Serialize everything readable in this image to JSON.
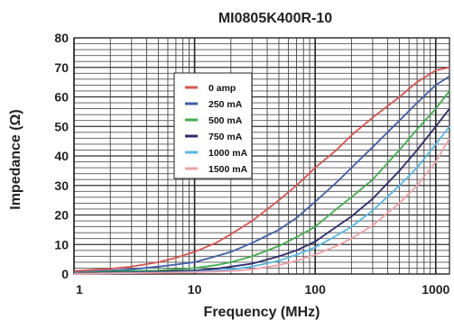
{
  "chart_data": {
    "type": "line",
    "title": "MI0805K400R-10",
    "xlabel": "Frequency (MHz)",
    "ylabel": "Impedance (Ω)",
    "x_scale": "log",
    "xlim": [
      1,
      1300
    ],
    "ylim": [
      0,
      80
    ],
    "grid": true,
    "legend_position": "top-center",
    "x_ticks": [
      {
        "value": 1,
        "label": "1"
      },
      {
        "value": 10,
        "label": "10"
      },
      {
        "value": 100,
        "label": "100"
      },
      {
        "value": 1000,
        "label": "1000"
      }
    ],
    "y_ticks": [
      {
        "value": 0,
        "label": "0"
      },
      {
        "value": 10,
        "label": "10"
      },
      {
        "value": 20,
        "label": "20"
      },
      {
        "value": 30,
        "label": "30"
      },
      {
        "value": 40,
        "label": "40"
      },
      {
        "value": 50,
        "label": "50"
      },
      {
        "value": 60,
        "label": "60"
      },
      {
        "value": 70,
        "label": "70"
      },
      {
        "value": 80,
        "label": "80"
      }
    ],
    "series": [
      {
        "name": "0 amp",
        "color": "#d9534f",
        "x": [
          1,
          2,
          3,
          5,
          7,
          10,
          15,
          20,
          30,
          50,
          70,
          100,
          150,
          200,
          300,
          500,
          700,
          1000,
          1300
        ],
        "y": [
          1,
          1.8,
          2.5,
          4,
          5.5,
          7.5,
          10.5,
          13.5,
          18,
          25,
          30,
          36,
          42,
          47,
          53,
          60,
          65,
          69,
          70
        ]
      },
      {
        "name": "250 mA",
        "color": "#3f5fa8",
        "x": [
          1,
          2,
          3,
          5,
          7,
          10,
          15,
          20,
          30,
          50,
          70,
          100,
          150,
          200,
          300,
          500,
          700,
          1000,
          1300
        ],
        "y": [
          0.5,
          1.2,
          1.6,
          2.5,
          3.2,
          4,
          6,
          7.5,
          10.5,
          15,
          19,
          24.5,
          31,
          36,
          43,
          52,
          58,
          64,
          67
        ]
      },
      {
        "name": "500 mA",
        "color": "#3fae4a",
        "x": [
          1,
          2,
          3,
          5,
          7,
          10,
          15,
          20,
          30,
          50,
          70,
          100,
          150,
          200,
          300,
          500,
          700,
          1000,
          1300
        ],
        "y": [
          0.3,
          0.8,
          1,
          1.2,
          1.6,
          2,
          3,
          4,
          6,
          9.5,
          12.5,
          16,
          22,
          26,
          32,
          42,
          49,
          56,
          62
        ]
      },
      {
        "name": "750 mA",
        "color": "#2b2a6e",
        "x": [
          1,
          2,
          3,
          5,
          7,
          10,
          15,
          20,
          30,
          50,
          70,
          100,
          150,
          200,
          300,
          500,
          700,
          1000,
          1300
        ],
        "y": [
          0.2,
          0.5,
          0.6,
          0.8,
          1,
          1.2,
          1.8,
          2.5,
          3.5,
          6,
          8,
          11,
          16,
          19.5,
          25.5,
          35,
          42,
          50,
          56
        ]
      },
      {
        "name": "1000 mA",
        "color": "#56b8e6",
        "x": [
          1,
          2,
          3,
          5,
          7,
          10,
          15,
          20,
          30,
          50,
          70,
          100,
          150,
          200,
          300,
          500,
          700,
          1000,
          1300
        ],
        "y": [
          0.1,
          0.3,
          0.4,
          0.5,
          0.6,
          0.8,
          1.2,
          1.6,
          2.5,
          4.5,
          6.5,
          9,
          13,
          16,
          21.5,
          30,
          36,
          44,
          50
        ]
      },
      {
        "name": "1500 mA",
        "color": "#f0a0a5",
        "x": [
          1,
          2,
          3,
          5,
          7,
          10,
          15,
          20,
          30,
          50,
          70,
          100,
          150,
          200,
          300,
          500,
          700,
          1000,
          1300
        ],
        "y": [
          0.1,
          0.2,
          0.3,
          0.4,
          0.5,
          0.6,
          0.8,
          1,
          1.6,
          3,
          4.5,
          6.5,
          9.5,
          12,
          16.5,
          24,
          30,
          38,
          46
        ]
      }
    ]
  }
}
